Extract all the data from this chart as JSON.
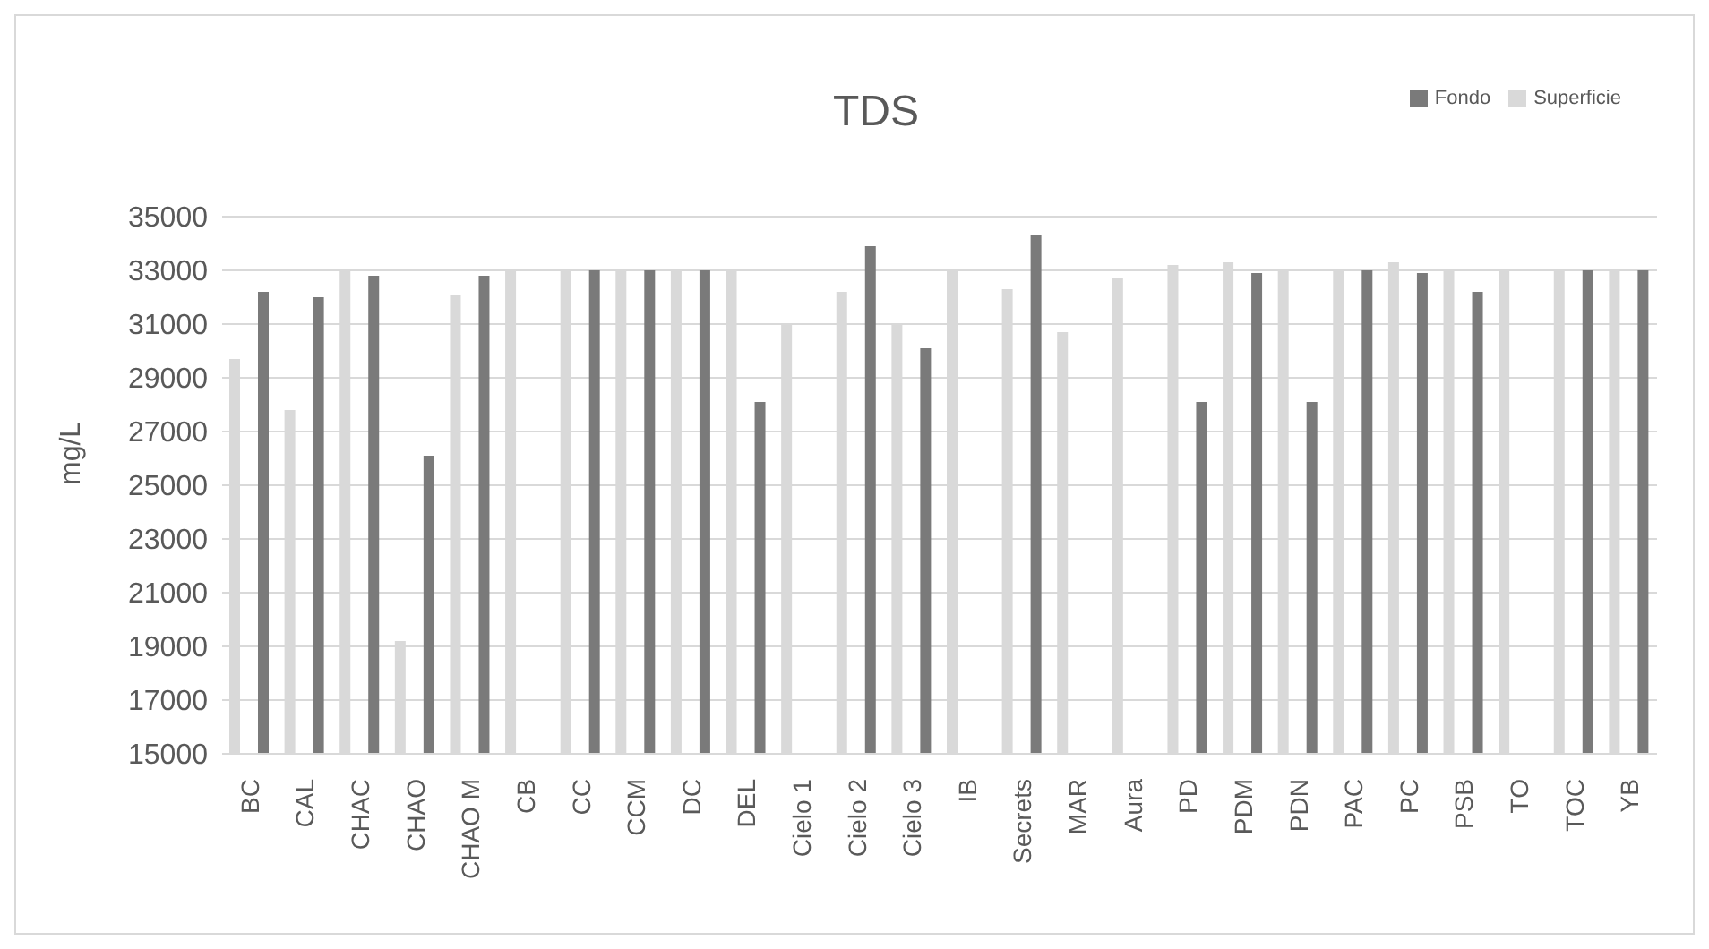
{
  "chart_data": {
    "type": "bar",
    "title": "TDS",
    "ylabel": "mg/L",
    "categories": [
      "BC",
      "CAL",
      "CHAC",
      "CHAO",
      "CHAO M",
      "CB",
      "CC",
      "CCM",
      "DC",
      "DEL",
      "Cielo 1",
      "Cielo 2",
      "Cielo 3",
      "IB",
      "Secrets",
      "MAR",
      "Aura",
      "PD",
      "PDM",
      "PDN",
      "PAC",
      "PC",
      "PSB",
      "TO",
      "TOC",
      "YB"
    ],
    "series": [
      {
        "name": "Superficie",
        "color": "#d9d9d9",
        "values": [
          29700,
          27800,
          33000,
          19200,
          32100,
          33000,
          33000,
          33000,
          33000,
          33000,
          31000,
          32200,
          31000,
          33000,
          32300,
          30700,
          32700,
          33200,
          33300,
          33000,
          33000,
          33300,
          33000,
          33000,
          33000,
          33000
        ]
      },
      {
        "name": "Fondo",
        "color": "#7a7a7a",
        "values": [
          32200,
          32000,
          32800,
          26100,
          32800,
          null,
          33000,
          33000,
          33000,
          28100,
          null,
          33900,
          30100,
          null,
          34300,
          null,
          null,
          28100,
          32900,
          28100,
          33000,
          32900,
          32200,
          null,
          33000,
          33000
        ]
      }
    ],
    "ylim": [
      15000,
      35000
    ],
    "yticks": [
      15000,
      17000,
      19000,
      21000,
      23000,
      25000,
      27000,
      29000,
      31000,
      33000,
      35000
    ],
    "grid": "y",
    "legend": "top right"
  }
}
